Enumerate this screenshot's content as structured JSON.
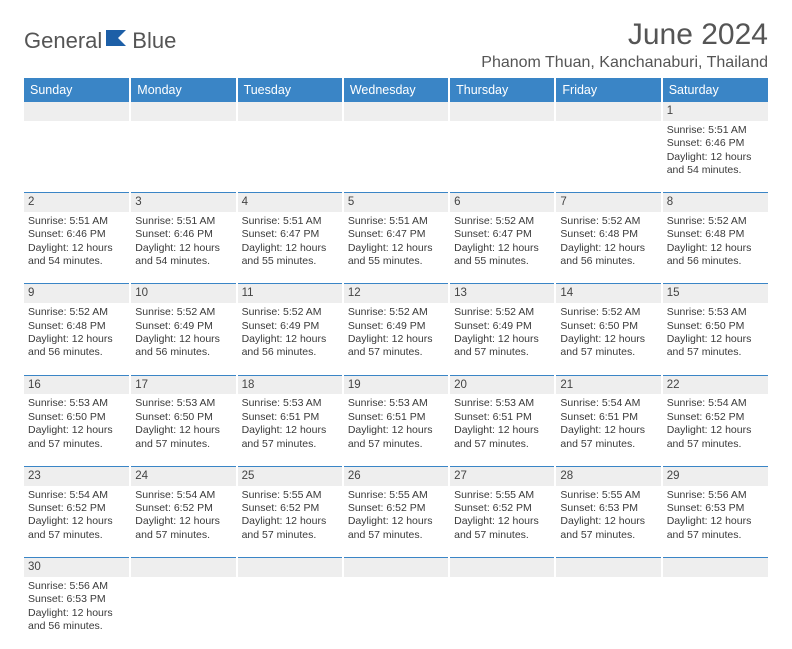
{
  "brand": {
    "word1": "General",
    "word2": "Blue"
  },
  "header": {
    "title": "June 2024",
    "location": "Phanom Thuan, Kanchanaburi, Thailand"
  },
  "colors": {
    "header_bar": "#3a85c6",
    "header_text": "#ffffff",
    "daynum_bg": "#eeeeee",
    "cell_border": "#3a85c6",
    "text": "#3a3a3a",
    "title": "#555555"
  },
  "weekdays": [
    "Sunday",
    "Monday",
    "Tuesday",
    "Wednesday",
    "Thursday",
    "Friday",
    "Saturday"
  ],
  "weeks": [
    {
      "nums": [
        "",
        "",
        "",
        "",
        "",
        "",
        "1"
      ],
      "cells": [
        null,
        null,
        null,
        null,
        null,
        null,
        {
          "sunrise": "5:51 AM",
          "sunset": "6:46 PM",
          "daylight": "12 hours and 54 minutes."
        }
      ]
    },
    {
      "nums": [
        "2",
        "3",
        "4",
        "5",
        "6",
        "7",
        "8"
      ],
      "cells": [
        {
          "sunrise": "5:51 AM",
          "sunset": "6:46 PM",
          "daylight": "12 hours and 54 minutes."
        },
        {
          "sunrise": "5:51 AM",
          "sunset": "6:46 PM",
          "daylight": "12 hours and 54 minutes."
        },
        {
          "sunrise": "5:51 AM",
          "sunset": "6:47 PM",
          "daylight": "12 hours and 55 minutes."
        },
        {
          "sunrise": "5:51 AM",
          "sunset": "6:47 PM",
          "daylight": "12 hours and 55 minutes."
        },
        {
          "sunrise": "5:52 AM",
          "sunset": "6:47 PM",
          "daylight": "12 hours and 55 minutes."
        },
        {
          "sunrise": "5:52 AM",
          "sunset": "6:48 PM",
          "daylight": "12 hours and 56 minutes."
        },
        {
          "sunrise": "5:52 AM",
          "sunset": "6:48 PM",
          "daylight": "12 hours and 56 minutes."
        }
      ]
    },
    {
      "nums": [
        "9",
        "10",
        "11",
        "12",
        "13",
        "14",
        "15"
      ],
      "cells": [
        {
          "sunrise": "5:52 AM",
          "sunset": "6:48 PM",
          "daylight": "12 hours and 56 minutes."
        },
        {
          "sunrise": "5:52 AM",
          "sunset": "6:49 PM",
          "daylight": "12 hours and 56 minutes."
        },
        {
          "sunrise": "5:52 AM",
          "sunset": "6:49 PM",
          "daylight": "12 hours and 56 minutes."
        },
        {
          "sunrise": "5:52 AM",
          "sunset": "6:49 PM",
          "daylight": "12 hours and 57 minutes."
        },
        {
          "sunrise": "5:52 AM",
          "sunset": "6:49 PM",
          "daylight": "12 hours and 57 minutes."
        },
        {
          "sunrise": "5:52 AM",
          "sunset": "6:50 PM",
          "daylight": "12 hours and 57 minutes."
        },
        {
          "sunrise": "5:53 AM",
          "sunset": "6:50 PM",
          "daylight": "12 hours and 57 minutes."
        }
      ]
    },
    {
      "nums": [
        "16",
        "17",
        "18",
        "19",
        "20",
        "21",
        "22"
      ],
      "cells": [
        {
          "sunrise": "5:53 AM",
          "sunset": "6:50 PM",
          "daylight": "12 hours and 57 minutes."
        },
        {
          "sunrise": "5:53 AM",
          "sunset": "6:50 PM",
          "daylight": "12 hours and 57 minutes."
        },
        {
          "sunrise": "5:53 AM",
          "sunset": "6:51 PM",
          "daylight": "12 hours and 57 minutes."
        },
        {
          "sunrise": "5:53 AM",
          "sunset": "6:51 PM",
          "daylight": "12 hours and 57 minutes."
        },
        {
          "sunrise": "5:53 AM",
          "sunset": "6:51 PM",
          "daylight": "12 hours and 57 minutes."
        },
        {
          "sunrise": "5:54 AM",
          "sunset": "6:51 PM",
          "daylight": "12 hours and 57 minutes."
        },
        {
          "sunrise": "5:54 AM",
          "sunset": "6:52 PM",
          "daylight": "12 hours and 57 minutes."
        }
      ]
    },
    {
      "nums": [
        "23",
        "24",
        "25",
        "26",
        "27",
        "28",
        "29"
      ],
      "cells": [
        {
          "sunrise": "5:54 AM",
          "sunset": "6:52 PM",
          "daylight": "12 hours and 57 minutes."
        },
        {
          "sunrise": "5:54 AM",
          "sunset": "6:52 PM",
          "daylight": "12 hours and 57 minutes."
        },
        {
          "sunrise": "5:55 AM",
          "sunset": "6:52 PM",
          "daylight": "12 hours and 57 minutes."
        },
        {
          "sunrise": "5:55 AM",
          "sunset": "6:52 PM",
          "daylight": "12 hours and 57 minutes."
        },
        {
          "sunrise": "5:55 AM",
          "sunset": "6:52 PM",
          "daylight": "12 hours and 57 minutes."
        },
        {
          "sunrise": "5:55 AM",
          "sunset": "6:53 PM",
          "daylight": "12 hours and 57 minutes."
        },
        {
          "sunrise": "5:56 AM",
          "sunset": "6:53 PM",
          "daylight": "12 hours and 57 minutes."
        }
      ]
    },
    {
      "nums": [
        "30",
        "",
        "",
        "",
        "",
        "",
        ""
      ],
      "cells": [
        {
          "sunrise": "5:56 AM",
          "sunset": "6:53 PM",
          "daylight": "12 hours and 56 minutes."
        },
        null,
        null,
        null,
        null,
        null,
        null
      ]
    }
  ],
  "labels": {
    "sunrise": "Sunrise: ",
    "sunset": "Sunset: ",
    "daylight": "Daylight: "
  }
}
